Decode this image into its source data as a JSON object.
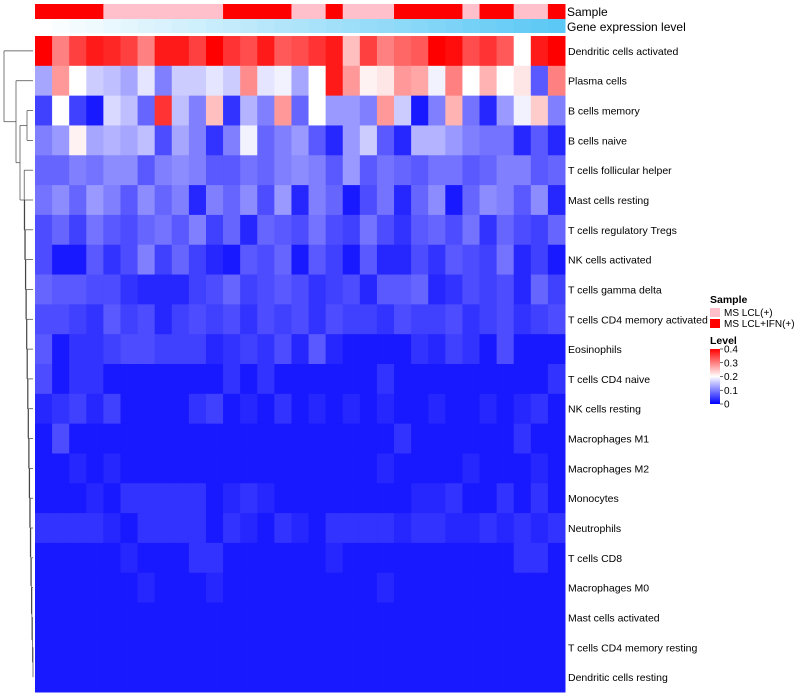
{
  "chart_data": {
    "type": "heatmap",
    "annotation_labels": [
      "Sample",
      "Gene expression level"
    ],
    "sample_groups": [
      "MS LCL(+)",
      "MS LCL+IFN(+)"
    ],
    "sample_group_colors": {
      "MS LCL(+)": "#ffc0cb",
      "MS LCL+IFN(+)": "#ff0000"
    },
    "sample_annotation": [
      1,
      1,
      1,
      1,
      0,
      0,
      0,
      0,
      0,
      0,
      0,
      1,
      1,
      1,
      1,
      0,
      0,
      1,
      0,
      0,
      0,
      1,
      1,
      1,
      1,
      0,
      1,
      1,
      0,
      0,
      1
    ],
    "expression_gradient": [
      "#ffffff",
      "#5bc8f5"
    ],
    "legend_sample_title": "Sample",
    "legend_level_title": "Level",
    "legend_level_ticks": [
      "0.4",
      "0.3",
      "0.2",
      "0.1",
      "0"
    ],
    "level_range": [
      0,
      0.4
    ],
    "level_colors": [
      "#0000ff",
      "#ffffff",
      "#ff0000"
    ],
    "rows": [
      "Dendritic cells activated",
      "Plasma cells",
      "B cells memory",
      "B cells naive",
      "T cells follicular helper",
      "Mast cells resting",
      "T cells regulatory  Tregs",
      "NK cells activated",
      "T cells gamma delta",
      "T cells CD4 memory activated",
      "Eosinophils",
      "T cells CD4 naive",
      "NK cells resting",
      "Macrophages M1",
      "Macrophages M2",
      "Monocytes",
      "Neutrophils",
      "T cells CD8",
      "Macrophages M0",
      "Mast cells activated",
      "T cells CD4 memory resting",
      "Dendritic cells resting"
    ],
    "values": [
      [
        0.4,
        0.3,
        0.35,
        0.38,
        0.37,
        0.35,
        0.3,
        0.38,
        0.38,
        0.35,
        0.4,
        0.36,
        0.34,
        0.38,
        0.33,
        0.34,
        0.36,
        0.38,
        0.25,
        0.35,
        0.3,
        0.32,
        0.33,
        0.4,
        0.39,
        0.34,
        0.36,
        0.33,
        0.2,
        0.38,
        0.4
      ],
      [
        0.13,
        0.28,
        0.2,
        0.16,
        0.15,
        0.13,
        0.18,
        0.1,
        0.16,
        0.16,
        0.18,
        0.16,
        0.29,
        0.18,
        0.19,
        0.13,
        0.2,
        0.38,
        0.28,
        0.21,
        0.22,
        0.28,
        0.27,
        0.19,
        0.3,
        0.2,
        0.26,
        0.2,
        0.22,
        0.07,
        0.3
      ],
      [
        0.05,
        0.2,
        0.05,
        0.02,
        0.17,
        0.15,
        0.08,
        0.36,
        0.15,
        0.1,
        0.25,
        0.04,
        0.14,
        0.1,
        0.28,
        0.08,
        0.2,
        0.12,
        0.12,
        0.1,
        0.28,
        0.16,
        0.02,
        0.1,
        0.26,
        0.09,
        0.03,
        0.12,
        0.19,
        0.24,
        0.1
      ],
      [
        0.1,
        0.12,
        0.21,
        0.13,
        0.14,
        0.13,
        0.15,
        0.06,
        0.13,
        0.1,
        0.04,
        0.1,
        0.19,
        0.08,
        0.1,
        0.12,
        0.07,
        0.03,
        0.12,
        0.16,
        0.07,
        0.03,
        0.14,
        0.14,
        0.12,
        0.1,
        0.09,
        0.09,
        0.03,
        0.07,
        0.03
      ],
      [
        0.08,
        0.08,
        0.1,
        0.09,
        0.11,
        0.11,
        0.07,
        0.1,
        0.11,
        0.1,
        0.07,
        0.07,
        0.09,
        0.08,
        0.1,
        0.11,
        0.1,
        0.07,
        0.12,
        0.07,
        0.09,
        0.08,
        0.07,
        0.09,
        0.09,
        0.07,
        0.08,
        0.1,
        0.1,
        0.07,
        0.08
      ],
      [
        0.09,
        0.11,
        0.08,
        0.12,
        0.1,
        0.07,
        0.11,
        0.08,
        0.1,
        0.03,
        0.1,
        0.08,
        0.11,
        0.06,
        0.12,
        0.03,
        0.1,
        0.08,
        0.02,
        0.06,
        0.09,
        0.03,
        0.08,
        0.11,
        0.02,
        0.08,
        0.11,
        0.1,
        0.07,
        0.11,
        0.03
      ],
      [
        0.06,
        0.08,
        0.05,
        0.09,
        0.07,
        0.06,
        0.08,
        0.09,
        0.07,
        0.1,
        0.05,
        0.08,
        0.03,
        0.08,
        0.07,
        0.06,
        0.09,
        0.06,
        0.05,
        0.09,
        0.06,
        0.04,
        0.07,
        0.08,
        0.06,
        0.09,
        0.04,
        0.08,
        0.06,
        0.05,
        0.08
      ],
      [
        0.06,
        0.02,
        0.02,
        0.07,
        0.04,
        0.06,
        0.1,
        0.05,
        0.08,
        0.05,
        0.03,
        0.02,
        0.07,
        0.06,
        0.08,
        0.02,
        0.07,
        0.05,
        0.02,
        0.07,
        0.03,
        0.03,
        0.06,
        0.04,
        0.07,
        0.06,
        0.05,
        0.09,
        0.03,
        0.05,
        0.02
      ],
      [
        0.08,
        0.07,
        0.07,
        0.06,
        0.06,
        0.04,
        0.03,
        0.03,
        0.03,
        0.05,
        0.06,
        0.08,
        0.05,
        0.06,
        0.07,
        0.06,
        0.04,
        0.05,
        0.06,
        0.03,
        0.07,
        0.07,
        0.08,
        0.03,
        0.04,
        0.06,
        0.05,
        0.06,
        0.03,
        0.08,
        0.05
      ],
      [
        0.06,
        0.06,
        0.05,
        0.04,
        0.07,
        0.05,
        0.06,
        0.03,
        0.05,
        0.06,
        0.05,
        0.06,
        0.04,
        0.06,
        0.05,
        0.06,
        0.04,
        0.06,
        0.05,
        0.05,
        0.04,
        0.06,
        0.05,
        0.05,
        0.06,
        0.04,
        0.05,
        0.06,
        0.04,
        0.05,
        0.06
      ],
      [
        0.07,
        0.02,
        0.04,
        0.04,
        0.05,
        0.06,
        0.06,
        0.05,
        0.05,
        0.05,
        0.03,
        0.04,
        0.05,
        0.04,
        0.06,
        0.03,
        0.07,
        0.03,
        0.02,
        0.02,
        0.02,
        0.02,
        0.04,
        0.03,
        0.05,
        0.04,
        0.02,
        0.06,
        0.02,
        0.02,
        0.02
      ],
      [
        0.06,
        0.02,
        0.04,
        0.04,
        0.02,
        0.02,
        0.02,
        0.02,
        0.02,
        0.02,
        0.02,
        0.04,
        0.02,
        0.04,
        0.02,
        0.02,
        0.02,
        0.02,
        0.02,
        0.02,
        0.04,
        0.02,
        0.02,
        0.02,
        0.02,
        0.02,
        0.02,
        0.02,
        0.02,
        0.02,
        0.04
      ],
      [
        0.03,
        0.04,
        0.05,
        0.03,
        0.05,
        0.02,
        0.02,
        0.02,
        0.02,
        0.04,
        0.05,
        0.02,
        0.03,
        0.02,
        0.04,
        0.02,
        0.03,
        0.02,
        0.03,
        0.02,
        0.03,
        0.02,
        0.02,
        0.03,
        0.02,
        0.02,
        0.03,
        0.02,
        0.03,
        0.04,
        0.02
      ],
      [
        0.02,
        0.06,
        0.02,
        0.02,
        0.02,
        0.02,
        0.02,
        0.02,
        0.02,
        0.02,
        0.02,
        0.02,
        0.02,
        0.02,
        0.02,
        0.02,
        0.02,
        0.02,
        0.02,
        0.02,
        0.02,
        0.04,
        0.02,
        0.02,
        0.02,
        0.02,
        0.02,
        0.02,
        0.04,
        0.02,
        0.02
      ],
      [
        0.02,
        0.02,
        0.03,
        0.02,
        0.03,
        0.02,
        0.02,
        0.02,
        0.02,
        0.02,
        0.02,
        0.02,
        0.02,
        0.02,
        0.02,
        0.02,
        0.02,
        0.02,
        0.02,
        0.02,
        0.03,
        0.02,
        0.02,
        0.02,
        0.02,
        0.03,
        0.02,
        0.02,
        0.02,
        0.03,
        0.02
      ],
      [
        0.02,
        0.02,
        0.02,
        0.03,
        0.02,
        0.04,
        0.04,
        0.04,
        0.04,
        0.04,
        0.02,
        0.03,
        0.04,
        0.03,
        0.02,
        0.02,
        0.02,
        0.02,
        0.02,
        0.02,
        0.02,
        0.02,
        0.03,
        0.03,
        0.04,
        0.02,
        0.02,
        0.04,
        0.02,
        0.04,
        0.02
      ],
      [
        0.04,
        0.04,
        0.04,
        0.04,
        0.03,
        0.02,
        0.04,
        0.04,
        0.04,
        0.04,
        0.02,
        0.04,
        0.03,
        0.02,
        0.04,
        0.03,
        0.02,
        0.04,
        0.04,
        0.04,
        0.04,
        0.03,
        0.04,
        0.04,
        0.03,
        0.03,
        0.04,
        0.03,
        0.04,
        0.03,
        0.04
      ],
      [
        0.02,
        0.02,
        0.02,
        0.02,
        0.02,
        0.03,
        0.02,
        0.02,
        0.02,
        0.04,
        0.04,
        0.02,
        0.02,
        0.02,
        0.02,
        0.02,
        0.02,
        0.03,
        0.02,
        0.02,
        0.02,
        0.02,
        0.02,
        0.02,
        0.02,
        0.02,
        0.02,
        0.02,
        0.04,
        0.04,
        0.02
      ],
      [
        0.02,
        0.02,
        0.02,
        0.02,
        0.02,
        0.02,
        0.03,
        0.02,
        0.02,
        0.02,
        0.03,
        0.02,
        0.02,
        0.02,
        0.02,
        0.02,
        0.02,
        0.02,
        0.02,
        0.02,
        0.03,
        0.02,
        0.02,
        0.02,
        0.02,
        0.02,
        0.02,
        0.02,
        0.02,
        0.02,
        0.02
      ],
      [
        0.02,
        0.02,
        0.02,
        0.02,
        0.02,
        0.02,
        0.02,
        0.02,
        0.02,
        0.02,
        0.02,
        0.02,
        0.02,
        0.02,
        0.02,
        0.02,
        0.02,
        0.02,
        0.02,
        0.02,
        0.02,
        0.02,
        0.02,
        0.02,
        0.02,
        0.02,
        0.02,
        0.02,
        0.02,
        0.02,
        0.02
      ],
      [
        0.02,
        0.02,
        0.02,
        0.02,
        0.02,
        0.02,
        0.02,
        0.02,
        0.02,
        0.02,
        0.02,
        0.02,
        0.02,
        0.02,
        0.02,
        0.02,
        0.02,
        0.02,
        0.02,
        0.02,
        0.02,
        0.02,
        0.02,
        0.02,
        0.02,
        0.02,
        0.02,
        0.02,
        0.02,
        0.02,
        0.02
      ],
      [
        0.02,
        0.02,
        0.02,
        0.02,
        0.02,
        0.02,
        0.02,
        0.02,
        0.02,
        0.02,
        0.02,
        0.02,
        0.02,
        0.02,
        0.02,
        0.02,
        0.02,
        0.02,
        0.02,
        0.02,
        0.02,
        0.02,
        0.02,
        0.02,
        0.02,
        0.02,
        0.02,
        0.02,
        0.02,
        0.02,
        0.02
      ]
    ]
  }
}
